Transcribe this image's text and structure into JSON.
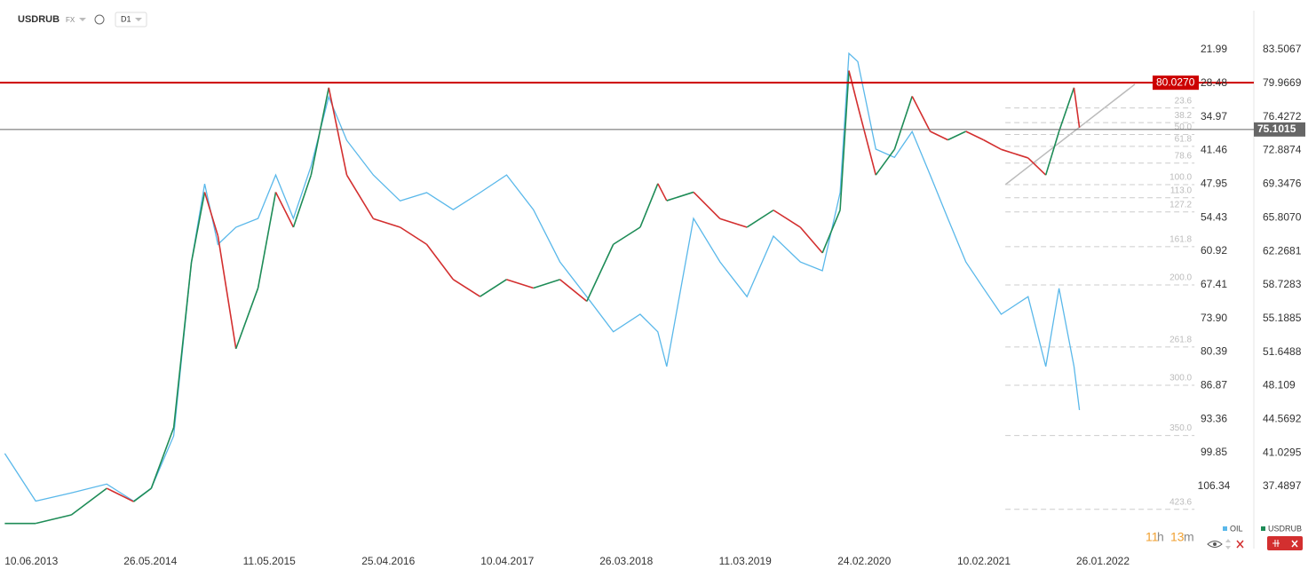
{
  "chart_data": {
    "type": "line",
    "symbol": "USDRUB",
    "market": "FX",
    "interval": "D1",
    "x": [
      "24.03.2013",
      "23.06.2013",
      "06.10.2013",
      "18.01.2014",
      "07.04.2014",
      "29.05.2014",
      "03.08.2014",
      "24.09.2014",
      "02.11.2014",
      "11.12.2014",
      "02.02.2015",
      "08.04.2015",
      "30.05.2015",
      "21.07.2015",
      "11.09.2015",
      "02.11.2015",
      "25.12.2015",
      "12.03.2016",
      "30.05.2016",
      "16.08.2016",
      "02.11.2016",
      "20.01.2017",
      "08.04.2017",
      "26.06.2017",
      "12.09.2017",
      "30.11.2017",
      "16.02.2018",
      "06.05.2018",
      "27.06.2018",
      "23.07.2018",
      "10.10.2018",
      "27.12.2018",
      "16.03.2019",
      "02.06.2019",
      "20.08.2019",
      "24.10.2019",
      "15.12.2019",
      "10.01.2020",
      "05.02.2020",
      "29.03.2020",
      "23.05.2020",
      "14.07.2020",
      "05.09.2020",
      "27.10.2020",
      "19.12.2020",
      "09.02.2021",
      "02.04.2021",
      "20.06.2021",
      "11.08.2021",
      "19.09.2021",
      "02.11.2021",
      "18.11.2021"
    ],
    "xlim": [
      "10.03.2013",
      "15.04.2023"
    ],
    "xticks": [
      "10.06.2013",
      "26.05.2014",
      "11.05.2015",
      "25.04.2016",
      "10.04.2017",
      "26.03.2018",
      "11.03.2019",
      "24.02.2020",
      "10.02.2021",
      "26.01.2022"
    ],
    "series": [
      {
        "name": "OIL",
        "color": "#5ab8ea",
        "axis": "y2",
        "values": [
          100.0,
          109.2,
          107.6,
          105.9,
          109.2,
          106.7,
          96.6,
          63.0,
          47.9,
          59.6,
          56.3,
          54.6,
          46.2,
          54.6,
          44.5,
          31.1,
          39.5,
          46.2,
          51.2,
          49.6,
          52.9,
          49.6,
          46.2,
          52.9,
          63.0,
          69.7,
          76.5,
          73.1,
          76.5,
          83.2,
          54.6,
          63.0,
          69.7,
          58.0,
          63.0,
          64.7,
          49.6,
          22.7,
          24.3,
          41.2,
          42.8,
          37.8,
          46.2,
          54.6,
          63.0,
          68.1,
          73.1,
          69.7,
          83.2,
          68.1,
          83.2,
          91.6
        ]
      },
      {
        "name": "USDRUB",
        "color": "#1e8c57",
        "down_color": "#d32f2f",
        "values": [
          33.6,
          33.6,
          34.5,
          37.3,
          35.9,
          37.3,
          43.7,
          61.1,
          68.5,
          63.9,
          52.0,
          58.4,
          68.5,
          64.8,
          70.3,
          79.5,
          70.3,
          65.7,
          64.8,
          63.0,
          59.3,
          57.5,
          59.3,
          58.4,
          59.3,
          57.0,
          63.0,
          64.8,
          69.4,
          67.6,
          68.5,
          65.7,
          64.8,
          66.6,
          64.8,
          62.1,
          66.6,
          81.3,
          77.6,
          70.3,
          73.0,
          78.6,
          74.9,
          74.0,
          74.9,
          74.0,
          73.0,
          72.1,
          70.3,
          74.9,
          79.5,
          75.3
        ]
      }
    ],
    "ylim": [
      31.23,
      86.87
    ],
    "yticks": [
      83.5067,
      79.9669,
      76.4272,
      72.8874,
      69.3476,
      {
        "value": 65.807,
        "label": "65.8070"
      },
      62.2681,
      58.7283,
      55.1885,
      51.6488,
      48.109,
      44.5692,
      41.0295,
      37.4897
    ],
    "y2lim": [
      117.86,
      15.82
    ],
    "y2ticks": [
      21.99,
      28.48,
      34.97,
      41.46,
      47.95,
      54.43,
      60.92,
      67.41,
      {
        "value": 73.9,
        "label": "73.90"
      },
      80.39,
      86.87,
      93.36,
      99.85,
      106.34
    ],
    "hlines": [
      {
        "value": 80.027,
        "label": "80.0270",
        "color": "#cc0000"
      },
      {
        "value": 75.1015,
        "label": "75.1015",
        "color": "#666666"
      }
    ],
    "fibonacci": {
      "price_0": 79.86,
      "price_100": 69.29,
      "dates": [
        "14.04.2021",
        "30.04.2022"
      ],
      "levels": [
        23.6,
        38.2,
        {
          "value": 50,
          "label": "50.0"
        },
        61.8,
        78.6,
        {
          "value": 100,
          "label": "100.0"
        },
        {
          "value": 113,
          "label": "113.0"
        },
        127.2,
        161.8,
        {
          "value": 200,
          "label": "200.0"
        },
        261.8,
        {
          "value": 300,
          "label": "300.0"
        },
        {
          "value": 350,
          "label": "350.0"
        },
        423.6
      ]
    },
    "timer": [
      "11",
      "h",
      "13",
      "m"
    ]
  }
}
